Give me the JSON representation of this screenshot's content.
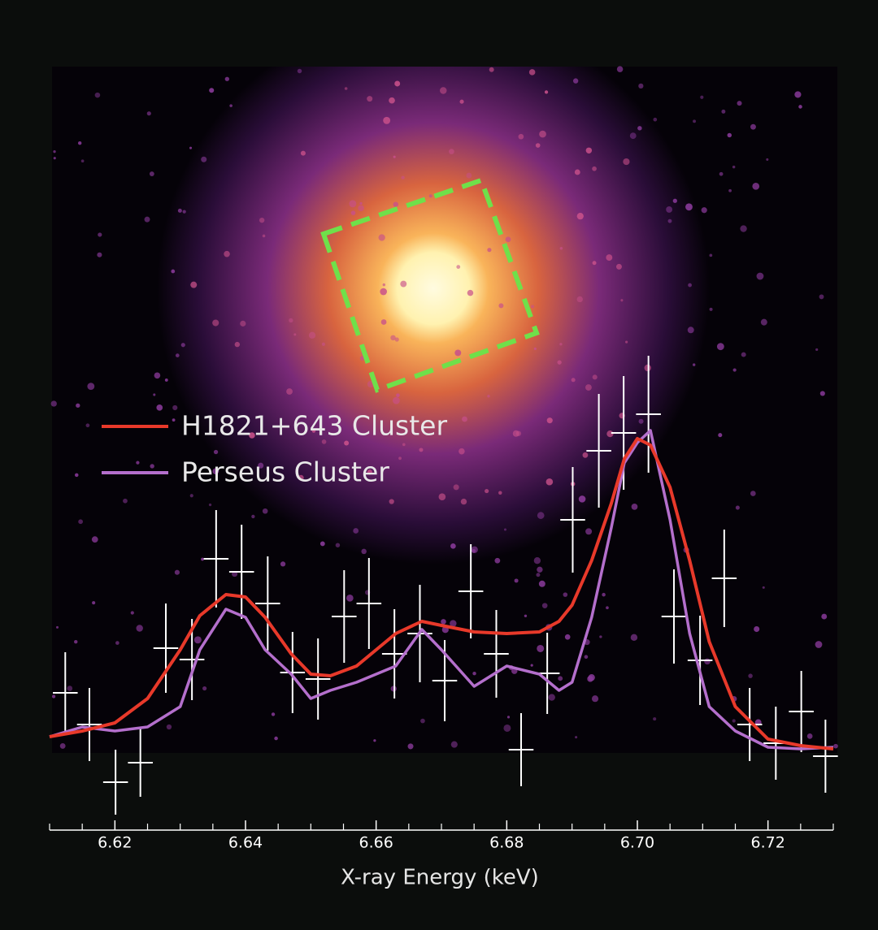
{
  "chart_data": {
    "type": "line",
    "x_label": "X-ray Energy (keV)",
    "legend": "upper left",
    "xlim": [
      6.61,
      6.73
    ],
    "xticks": [
      6.62,
      6.64,
      6.66,
      6.68,
      {
        "value": 6.7,
        "label": "6.70"
      },
      6.72
    ],
    "xminor_ticks": [
      6.61,
      6.615,
      6.625,
      6.63,
      6.635,
      6.645,
      6.65,
      6.655,
      6.665,
      6.67,
      6.675,
      6.685,
      6.69,
      6.695,
      6.705,
      6.71,
      6.715,
      6.725,
      6.73
    ],
    "ylim": [
      0,
      930
    ],
    "x": [
      6.61,
      6.615,
      6.62,
      6.625,
      6.63,
      6.633,
      6.637,
      6.64,
      6.643,
      6.647,
      6.65,
      6.653,
      6.657,
      6.66,
      6.663,
      6.667,
      6.67,
      6.675,
      6.68,
      6.685,
      6.688,
      6.69,
      6.693,
      6.696,
      6.698,
      6.7,
      6.702,
      6.705,
      6.708,
      6.711,
      6.715,
      6.72,
      6.725,
      6.73
    ],
    "series": [
      {
        "name": "H1821+643 Cluster",
        "color": "#e8392a",
        "values": [
          103,
          110,
          120,
          150,
          210,
          252,
          278,
          275,
          250,
          205,
          180,
          178,
          190,
          210,
          230,
          245,
          240,
          232,
          230,
          232,
          245,
          265,
          320,
          390,
          445,
          470,
          462,
          410,
          320,
          220,
          140,
          100,
          92,
          88
        ]
      },
      {
        "name": "Perseus Cluster",
        "color": "#b46fcc",
        "values": [
          103,
          115,
          110,
          115,
          140,
          210,
          260,
          250,
          210,
          180,
          150,
          160,
          170,
          180,
          190,
          235,
          210,
          165,
          190,
          180,
          160,
          170,
          250,
          360,
          440,
          465,
          480,
          370,
          230,
          140,
          110,
          90,
          88,
          90
        ]
      }
    ],
    "observations": {
      "color": "#ffffff",
      "xerr": 0.0019,
      "x": [
        6.6124,
        6.6161,
        6.6201,
        6.6239,
        6.6278,
        6.6318,
        6.6355,
        6.6394,
        6.6434,
        6.6472,
        6.6511,
        6.6551,
        6.6589,
        6.6628,
        6.6667,
        6.6705,
        6.6745,
        6.6784,
        6.6822,
        6.6862,
        6.6901,
        6.6941,
        6.6979,
        6.7017,
        6.7056,
        6.7096,
        6.7133,
        6.7172,
        6.7212,
        6.7251,
        6.7288
      ],
      "values": [
        157,
        118,
        47,
        71,
        212,
        198,
        322,
        306,
        267,
        182,
        174,
        251,
        267,
        205,
        230,
        172,
        282,
        205,
        87,
        181,
        370,
        455,
        477,
        500,
        251,
        197,
        298,
        118,
        95,
        134,
        79
      ],
      "errors": [
        50,
        45,
        40,
        42,
        55,
        50,
        60,
        58,
        58,
        50,
        50,
        57,
        56,
        55,
        60,
        50,
        58,
        54,
        45,
        50,
        65,
        70,
        70,
        72,
        58,
        55,
        60,
        45,
        45,
        50,
        45
      ]
    }
  }
}
